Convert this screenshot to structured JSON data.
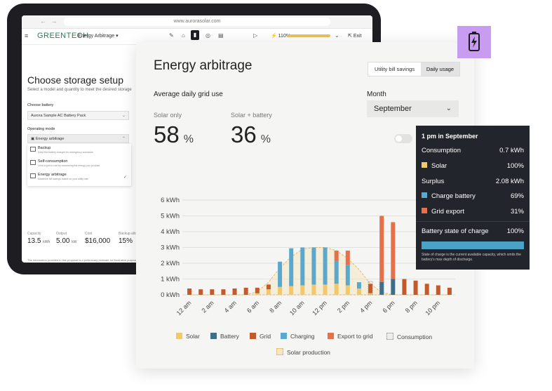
{
  "browser": {
    "nav_arrows": "← →",
    "url": "www.aurorasolar.com"
  },
  "app": {
    "menu_icon": "≡",
    "logo": "GREENTECH",
    "active_tab": "Energy Arbitrage",
    "zoom": "110%",
    "zoom_fill": 1.0,
    "exit_label": "Exit"
  },
  "setup": {
    "title": "Choose storage setup",
    "subtitle": "Select a model and quantity to meet the desired storage",
    "battery_label": "Choose battery",
    "battery_value": "Aurora Sample AC Battery Pack",
    "mode_label": "Operating mode",
    "mode_value": "Energy arbitrage",
    "options": [
      {
        "title": "Backup",
        "desc": "Keep the battery charged for emergency scenarios"
      },
      {
        "title": "Self-consumption",
        "desc": "Lend a grid to use by consuming the energy you produce"
      },
      {
        "title": "Energy arbitrage",
        "desc": "Maximize bill savings based on your utility rate"
      }
    ],
    "stats": [
      {
        "label": "Capacity",
        "value": "13.5",
        "unit": "kWh"
      },
      {
        "label": "Output",
        "value": "5.00",
        "unit": "kW"
      },
      {
        "label": "Cost",
        "value": "$16,000",
        "unit": ""
      },
      {
        "label": "Backup alloc",
        "value": "15%",
        "unit": ""
      }
    ],
    "disclaimer": "The information provided in this proposal is a preliminary estimate for illustrative purposes on"
  },
  "card": {
    "title": "Energy arbitrage",
    "tabs": [
      "Utility bill savings",
      "Daily usage"
    ],
    "active_tab": "Daily usage",
    "section": "Average daily grid use",
    "month_label": "Month",
    "month_value": "September",
    "metrics": [
      {
        "label": "Solar only",
        "value": "58",
        "unit": "%"
      },
      {
        "label": "Solar + battery",
        "value": "36",
        "unit": "%"
      }
    ]
  },
  "chart_data": {
    "type": "bar",
    "stacked": true,
    "categories": [
      "12 am",
      "1 am",
      "2 am",
      "3 am",
      "4 am",
      "5 am",
      "6 am",
      "7 am",
      "8 am",
      "9 am",
      "10 am",
      "11 am",
      "12 pm",
      "1 pm",
      "2 pm",
      "3 pm",
      "4 pm",
      "5 pm",
      "6 pm",
      "7 pm",
      "8 pm",
      "9 pm",
      "10 pm",
      "11 pm"
    ],
    "tick_labels": [
      "12 am",
      "2 am",
      "4 am",
      "6 am",
      "8 am",
      "10 am",
      "12 pm",
      "2 pm",
      "4 pm",
      "6 pm",
      "8 pm",
      "10 pm"
    ],
    "yticks": [
      "0 kWh",
      "1 kWh",
      "2 kWh",
      "3 kWh",
      "4 kWh",
      "5 kWh",
      "6 kWh"
    ],
    "ylim": [
      0,
      6
    ],
    "series": [
      {
        "name": "Solar",
        "color": "#f2c96a",
        "values": [
          0,
          0,
          0,
          0,
          0,
          0,
          0.1,
          0.35,
          0.5,
          0.55,
          0.6,
          0.65,
          0.65,
          0.7,
          0.6,
          0.4,
          0.1,
          0,
          0,
          0,
          0,
          0,
          0,
          0
        ]
      },
      {
        "name": "Battery",
        "color": "#3e6e88",
        "values": [
          0,
          0,
          0,
          0,
          0,
          0,
          0,
          0,
          0,
          0,
          0,
          0,
          0,
          0,
          0,
          0,
          0,
          0.8,
          1.0,
          0,
          0,
          0,
          0,
          0
        ]
      },
      {
        "name": "Grid",
        "color": "#c35a2c",
        "values": [
          0.4,
          0.35,
          0.35,
          0.35,
          0.4,
          0.45,
          0.35,
          0.3,
          0,
          0,
          0,
          0,
          0,
          0,
          0,
          0,
          0.6,
          0,
          0,
          1.0,
          0.9,
          0.7,
          0.6,
          0.45
        ]
      },
      {
        "name": "Charging",
        "color": "#5aa9cc",
        "values": [
          0,
          0,
          0,
          0,
          0,
          0,
          0,
          0,
          1.6,
          2.4,
          2.4,
          2.35,
          2.35,
          1.45,
          1.3,
          0.4,
          0,
          0,
          0,
          0,
          0,
          0,
          0,
          0
        ]
      },
      {
        "name": "Export to grid",
        "color": "#e5704a",
        "values": [
          0,
          0,
          0,
          0,
          0,
          0,
          0,
          0,
          0,
          0,
          0,
          0,
          0,
          0.65,
          0.9,
          0,
          0,
          0,
          0,
          0,
          0,
          0,
          0,
          0
        ]
      },
      {
        "name": "Consumption",
        "color": "#d8d6d2",
        "values": [
          0,
          0,
          0,
          0,
          0,
          0,
          0,
          0,
          0,
          0,
          0,
          0,
          0,
          0,
          0,
          0,
          0,
          0,
          0,
          0,
          0,
          0,
          0,
          0
        ]
      }
    ],
    "export_spikes": [
      {
        "hour": "5 pm",
        "value": 5.0
      },
      {
        "hour": "6 pm",
        "value": 4.6
      }
    ],
    "solar_production": [
      0,
      0,
      0,
      0,
      0,
      0,
      0.2,
      0.8,
      1.7,
      2.4,
      2.9,
      3.0,
      3.0,
      2.8,
      2.3,
      1.6,
      0.7,
      0.15,
      0,
      0,
      0,
      0,
      0,
      0
    ],
    "legend": [
      "Solar",
      "Battery",
      "Grid",
      "Charging",
      "Export to grid",
      "Consumption",
      "Solar production"
    ],
    "legend_placement": "bottom",
    "grid": true
  },
  "tooltip": {
    "title": "1 pm in September",
    "rows": [
      {
        "label": "Consumption",
        "value": "0.7 kWh",
        "swatch": ""
      },
      {
        "label": "Solar",
        "value": "100%",
        "swatch": "#f2c96a"
      },
      {
        "label": "Surplus",
        "value": "2.08 kWh",
        "swatch": ""
      },
      {
        "label": "Charge battery",
        "value": "69%",
        "swatch": "#5aa9cc"
      },
      {
        "label": "Grid export",
        "value": "31%",
        "swatch": "#e5704a"
      }
    ],
    "soc_label": "Battery state of charge",
    "soc_value": "100%",
    "soc_fraction": 1.0,
    "note": "State of charge is the current available capacity, which omits the battery's max depth of discharge."
  },
  "colors": {
    "accent": "#c79cf1",
    "brand": "#2f7a53"
  },
  "badge_icon": "battery-charging-icon"
}
